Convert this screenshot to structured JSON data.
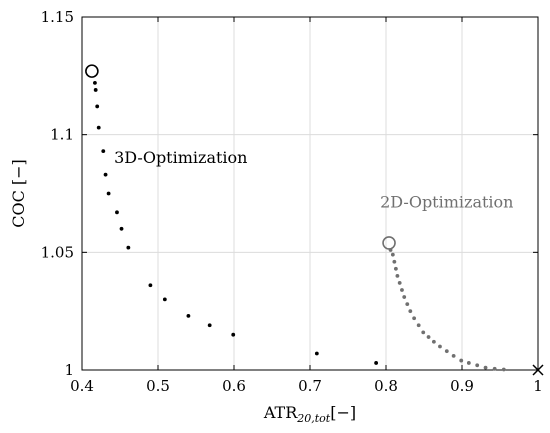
{
  "chart_data": {
    "type": "scatter",
    "xlabel": "ATR",
    "xlabel_sub": "20,tot",
    "xlabel_unit": "[−]",
    "ylabel": "COC [−]",
    "xlim": [
      0.4,
      1.0
    ],
    "ylim": [
      1.0,
      1.15
    ],
    "xticks": [
      0.4,
      0.5,
      0.6,
      0.7,
      0.8,
      0.9,
      1.0
    ],
    "xtick_labels": [
      "0.4",
      "0.5",
      "0.6",
      "0.7",
      "0.8",
      "0.9",
      "1"
    ],
    "yticks": [
      1.0,
      1.05,
      1.1,
      1.15
    ],
    "ytick_labels": [
      "1",
      "1.05",
      "1.1",
      "1.15"
    ],
    "grid": true,
    "annotations": [
      {
        "text": "3D-Optimization",
        "x": 0.53,
        "y": 1.088,
        "color": "#000000"
      },
      {
        "text": "2D-Optimization",
        "x": 0.88,
        "y": 1.069,
        "color": "#707070"
      }
    ],
    "series": [
      {
        "color": "#000000",
        "marker": "dot",
        "x": [
          0.417,
          0.418,
          0.42,
          0.422,
          0.428,
          0.431,
          0.435,
          0.446,
          0.452,
          0.461,
          0.49,
          0.509,
          0.54,
          0.568,
          0.599,
          0.709,
          0.787
        ],
        "y": [
          1.122,
          1.119,
          1.112,
          1.103,
          1.093,
          1.083,
          1.075,
          1.067,
          1.06,
          1.052,
          1.036,
          1.03,
          1.023,
          1.019,
          1.015,
          1.007,
          1.003
        ]
      },
      {
        "color": "#707070",
        "marker": "dot",
        "x": [
          0.806,
          0.809,
          0.811,
          0.813,
          0.815,
          0.818,
          0.821,
          0.824,
          0.828,
          0.832,
          0.837,
          0.843,
          0.849,
          0.856,
          0.863,
          0.871,
          0.88,
          0.889,
          0.899,
          0.909,
          0.92,
          0.931,
          0.943,
          0.955
        ],
        "y": [
          1.051,
          1.049,
          1.046,
          1.043,
          1.04,
          1.037,
          1.034,
          1.031,
          1.028,
          1.025,
          1.022,
          1.019,
          1.016,
          1.014,
          1.012,
          1.01,
          1.008,
          1.006,
          1.004,
          1.003,
          1.002,
          1.001,
          1.0005,
          1.0002
        ]
      }
    ],
    "endpoints": [
      {
        "x": 0.413,
        "y": 1.127,
        "marker": "open-circle",
        "color": "#000000"
      },
      {
        "x": 0.804,
        "y": 1.054,
        "marker": "open-circle",
        "color": "#707070"
      },
      {
        "x": 1.0,
        "y": 1.0,
        "marker": "cross",
        "color": "#000000"
      }
    ]
  }
}
